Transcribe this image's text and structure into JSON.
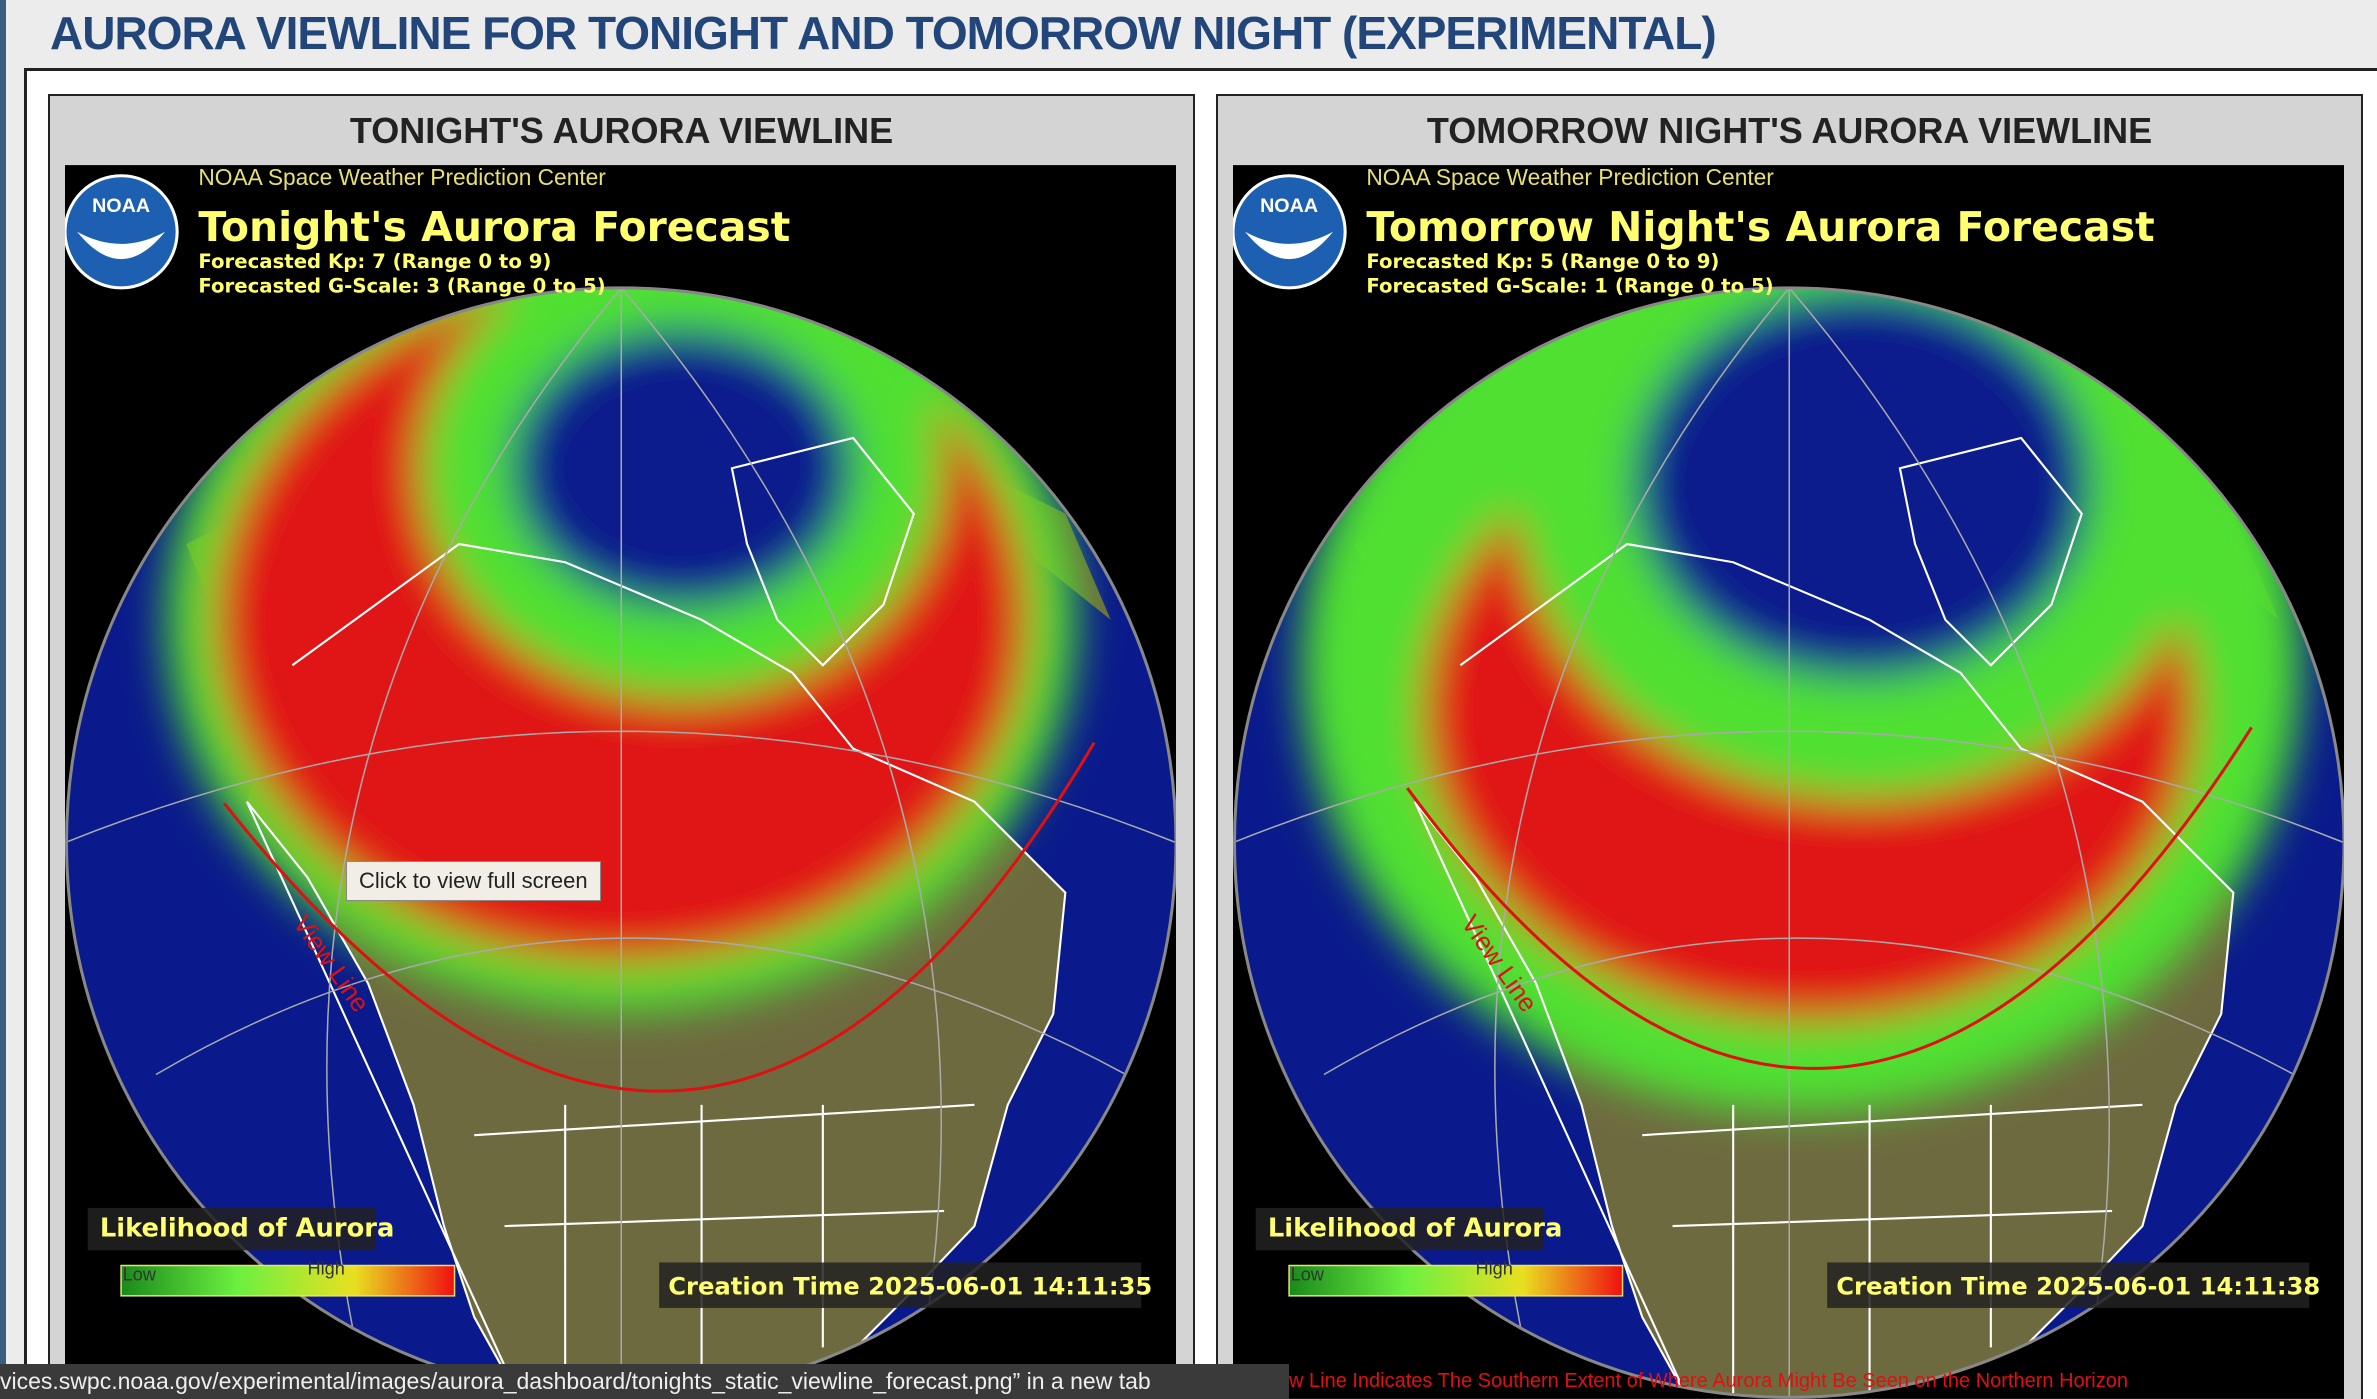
{
  "header": {
    "title": "AURORA VIEWLINE FOR TONIGHT AND TOMORROW NIGHT (EXPERIMENTAL)"
  },
  "panels": [
    {
      "heading": "TONIGHT'S AURORA VIEWLINE",
      "logo": "NOAA",
      "org": "NOAA Space Weather Prediction Center",
      "forecast_title": "Tonight's Aurora Forecast",
      "kp": "Forecasted Kp: 7 (Range 0 to 9)",
      "gscale": "Forecasted G-Scale: 3 (Range 0 to 5)",
      "view_line": "View Line",
      "legend_title": "Likelihood of Aurora",
      "legend_low": "Low",
      "legend_high": "High",
      "creation_time": "Creation Time 2025-06-01 14:11:35"
    },
    {
      "heading": "TOMORROW NIGHT'S AURORA VIEWLINE",
      "logo": "NOAA",
      "org": "NOAA Space Weather Prediction Center",
      "forecast_title": "Tomorrow Night's Aurora Forecast",
      "kp": "Forecasted Kp: 5 (Range 0 to 9)",
      "gscale": "Forecasted G-Scale: 1 (Range 0 to 5)",
      "view_line": "View Line",
      "legend_title": "Likelihood of Aurora",
      "legend_low": "Low",
      "legend_high": "High",
      "creation_time": "Creation Time 2025-06-01 14:11:38"
    }
  ],
  "tooltip": "Click to view full screen",
  "status_bar": "vices.swpc.noaa.gov/experimental/images/aurora_dashboard/tonights_static_viewline_forecast.png” in a new tab",
  "caption": "w Line Indicates The Southern Extent of Where Aurora Might Be Seen on the Northern Horizon"
}
